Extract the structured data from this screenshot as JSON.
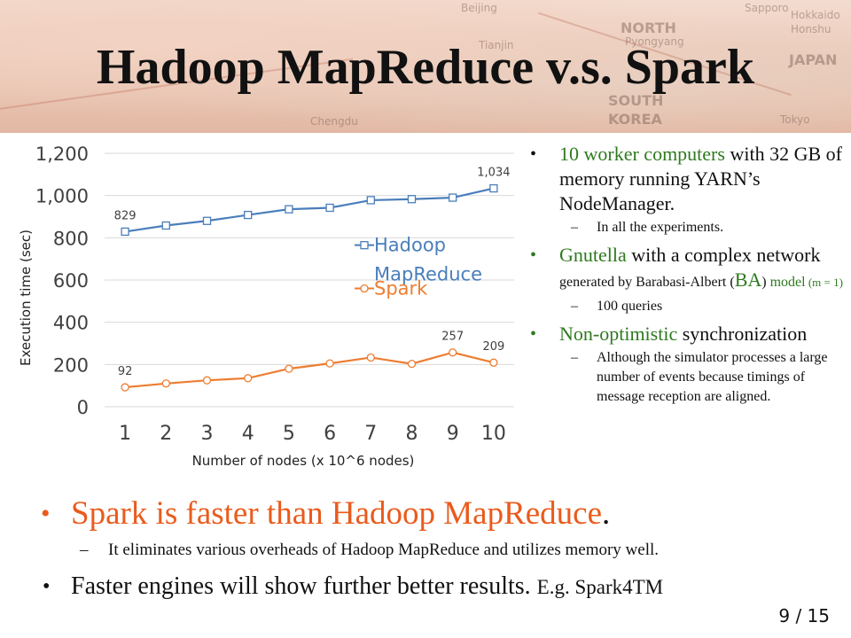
{
  "slide": {
    "title": "Hadoop MapReduce v.s. Spark",
    "page_current": "9",
    "page_separator": "/",
    "page_total": "15"
  },
  "banner": {
    "map_labels": [
      "Beijing",
      "Tianjin",
      "NORTH",
      "Pyongyang",
      "SOUTH",
      "KOREA",
      "Sapporo",
      "Hokkaido",
      "Honshu",
      "JAPAN",
      "Tokyo",
      "Chengdu"
    ]
  },
  "right_panel": {
    "bullet1": {
      "green": "10 worker computers",
      "rest": " with 32 GB of memory  running YARN’s NodeManager.",
      "sub": "In all the experiments."
    },
    "bullet2": {
      "green": "Gnutella",
      "rest1": " with a complex network ",
      "small1": "generated by Barabasi-Albert  (",
      "green_ba": "BA",
      "small2": ") ",
      "green_model": "model",
      "tiny_m": " (m = 1)",
      "sub": "100 queries"
    },
    "bullet3": {
      "green": "Non-optimistic",
      "rest": " synchronization",
      "sub": "Although the simulator processes a large number of events because timings of message reception are aligned."
    }
  },
  "bottom": {
    "line1_orange": "Spark is faster than Hadoop MapReduce",
    "line1_period": ".",
    "sub": "It eliminates various overheads of Hadoop MapReduce and utilizes memory well.",
    "line2": "Faster engines will show further better results. ",
    "line2_eg": "E.g. Spark4TM"
  },
  "chart_data": {
    "type": "line",
    "x": [
      1,
      2,
      3,
      4,
      5,
      6,
      7,
      8,
      9,
      10
    ],
    "xlabel": "Number of nodes (x 10^6 nodes)",
    "ylabel": "Execution time (sec)",
    "ylim": [
      0,
      1200
    ],
    "yticks": [
      0,
      200,
      400,
      600,
      800,
      1000,
      1200
    ],
    "ytick_labels": [
      "0",
      "200",
      "400",
      "600",
      "800",
      "1,000",
      "1,200"
    ],
    "grid": true,
    "legend_position": "right",
    "series": [
      {
        "name": "Hadoop MapReduce",
        "legend_lines": [
          "Hadoop",
          "MapReduce"
        ],
        "color": "#4a7ebb",
        "marker": "square",
        "values": [
          829,
          858,
          880,
          908,
          935,
          942,
          978,
          983,
          990,
          1034
        ]
      },
      {
        "name": "Spark",
        "legend_lines": [
          "Spark"
        ],
        "color": "#ed7d31",
        "marker": "circle",
        "values": [
          92,
          110,
          125,
          135,
          180,
          205,
          233,
          203,
          257,
          209
        ]
      }
    ],
    "data_labels": [
      {
        "series": 0,
        "index": 0,
        "text": "829"
      },
      {
        "series": 0,
        "index": 9,
        "text": "1,034"
      },
      {
        "series": 1,
        "index": 0,
        "text": "92"
      },
      {
        "series": 1,
        "index": 8,
        "text": "257"
      },
      {
        "series": 1,
        "index": 9,
        "text": "209"
      }
    ]
  }
}
